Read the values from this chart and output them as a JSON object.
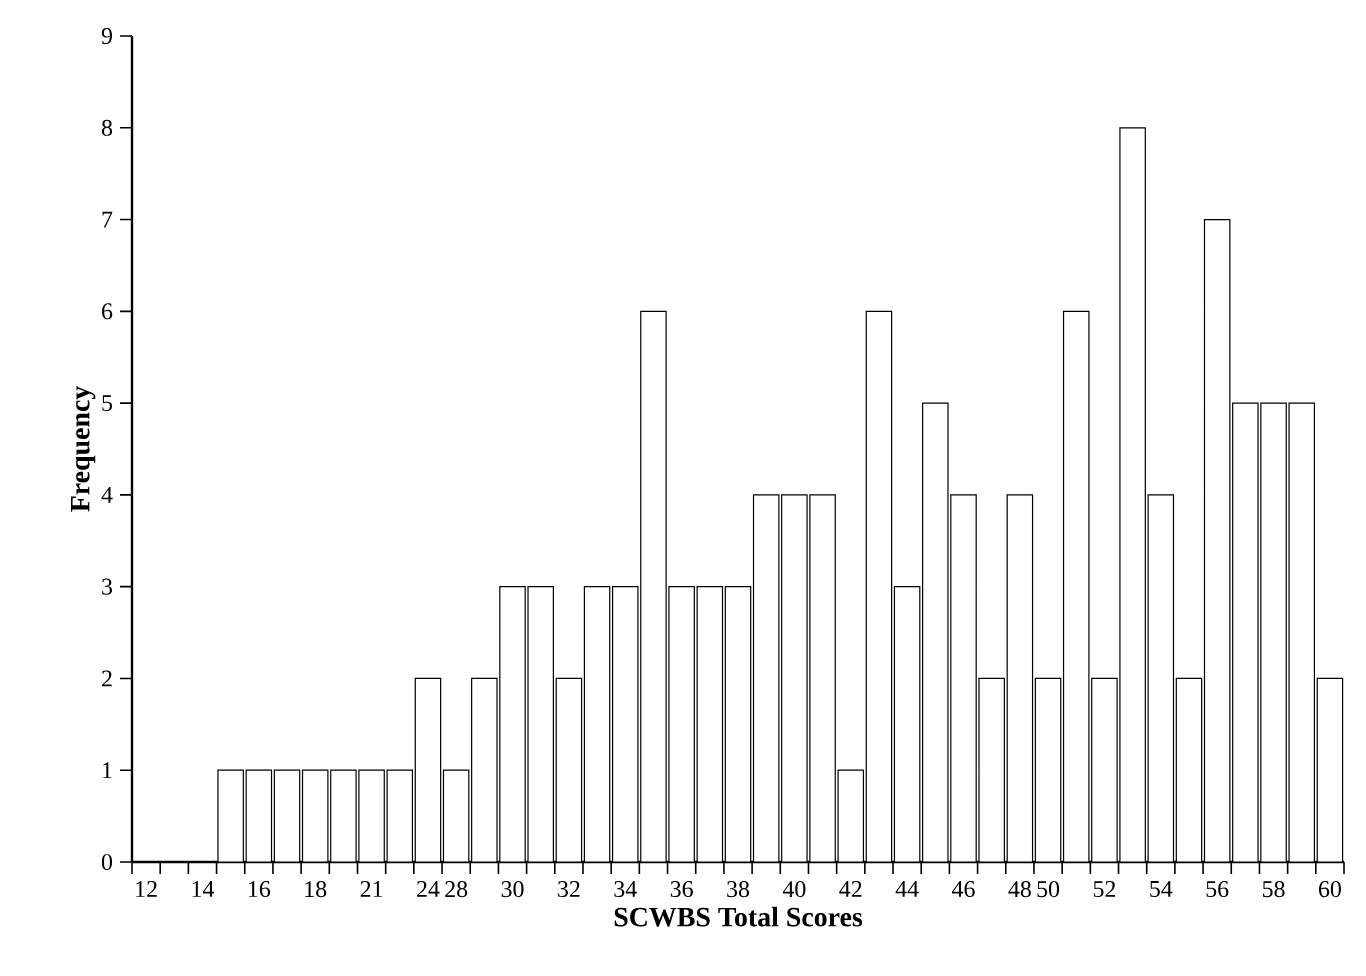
{
  "chart_data": {
    "type": "bar",
    "xlabel": "SCWBS Total Scores",
    "ylabel": "Frequency",
    "categories": [
      "12",
      null,
      "14",
      null,
      "16",
      null,
      "18",
      null,
      "21",
      null,
      "24",
      "28",
      null,
      "30",
      null,
      "32",
      null,
      "34",
      null,
      "36",
      null,
      "38",
      null,
      "40",
      null,
      "42",
      null,
      "44",
      null,
      "46",
      null,
      "48",
      "50",
      null,
      "52",
      null,
      "54",
      null,
      "56",
      null,
      "58",
      null,
      "60"
    ],
    "values": [
      0,
      0,
      0,
      1,
      1,
      1,
      1,
      1,
      1,
      1,
      2,
      1,
      2,
      3,
      3,
      2,
      3,
      3,
      6,
      3,
      3,
      3,
      4,
      4,
      4,
      1,
      6,
      3,
      5,
      4,
      2,
      4,
      2,
      6,
      2,
      8,
      4,
      2,
      7,
      5,
      5,
      5,
      2
    ],
    "color": "#ffffff",
    "ylim": [
      0,
      9
    ],
    "yticks": [
      0,
      1,
      2,
      3,
      4,
      5,
      6,
      7,
      8,
      9
    ]
  }
}
